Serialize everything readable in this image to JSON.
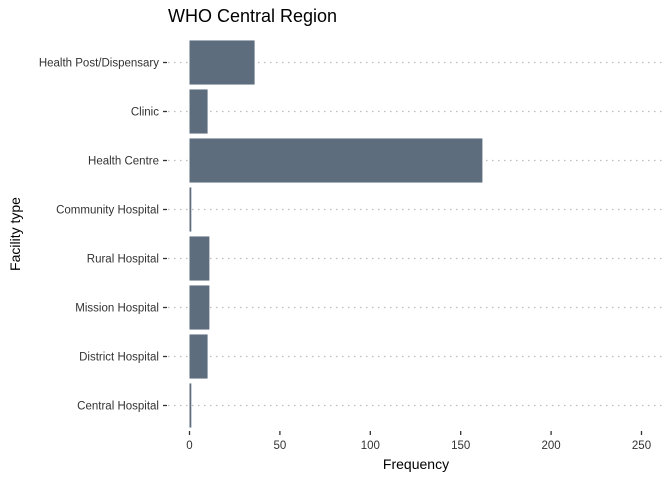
{
  "chart_data": {
    "type": "bar",
    "orientation": "horizontal",
    "title": "WHO Central Region",
    "xlabel": "Frequency",
    "ylabel": "Facility type",
    "categories": [
      "Health Post/Dispensary",
      "Clinic",
      "Health Centre",
      "Community Hospital",
      "Rural Hospital",
      "Mission Hospital",
      "District Hospital",
      "Central Hospital"
    ],
    "values": [
      36,
      10,
      162,
      1,
      11,
      11,
      10,
      1
    ],
    "xlim": [
      0,
      260
    ],
    "xticks": [
      0,
      50,
      100,
      150,
      200,
      250
    ],
    "grid": "horizontal-dotted",
    "legend": "none",
    "bar_color": "#5d6d7e",
    "grid_color": "#bdbdbd"
  }
}
